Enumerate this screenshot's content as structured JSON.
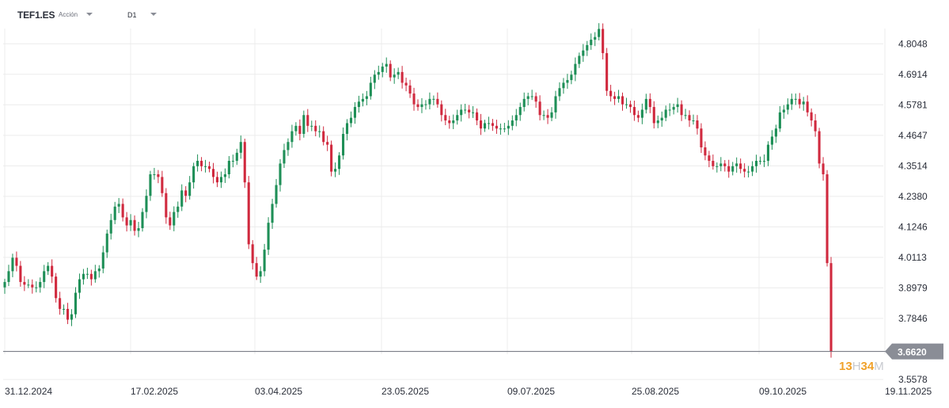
{
  "header": {
    "symbol": "TEF1.ES",
    "asset_type": "Acción",
    "timeframe": "D1"
  },
  "price_tag": {
    "value": "3.6620",
    "color": "#8a8d96"
  },
  "countdown": {
    "hours": "13",
    "h_unit": "H",
    "minutes": "34",
    "m_unit": "M",
    "color": "#f0a12a"
  },
  "colors": {
    "up": "#1e8f57",
    "down": "#d0293e",
    "grid": "#ececec"
  },
  "chart_data": {
    "type": "candlestick",
    "y_ticks": [
      "4.8048",
      "4.6914",
      "4.5781",
      "4.4647",
      "4.3514",
      "4.2380",
      "4.1246",
      "4.0113",
      "3.8979",
      "3.7846",
      "3.5578"
    ],
    "ylim": [
      3.5578,
      4.8615
    ],
    "x_ticks": [
      "31.12.2024",
      "17.02.2025",
      "03.04.2025",
      "23.05.2025",
      "09.07.2025",
      "25.08.2025",
      "09.10.2025",
      "19.11.2025"
    ],
    "last_price": 3.662,
    "closes": [
      3.92,
      3.96,
      4.01,
      3.98,
      3.92,
      3.91,
      3.91,
      3.9,
      3.9,
      3.92,
      3.96,
      3.98,
      3.94,
      3.86,
      3.82,
      3.82,
      3.78,
      3.8,
      3.88,
      3.93,
      3.95,
      3.95,
      3.93,
      3.96,
      3.97,
      4.03,
      4.1,
      4.15,
      4.2,
      4.21,
      4.16,
      4.13,
      4.15,
      4.11,
      4.12,
      4.18,
      4.24,
      4.32,
      4.32,
      4.31,
      4.25,
      4.16,
      4.13,
      4.18,
      4.2,
      4.26,
      4.24,
      4.29,
      4.35,
      4.37,
      4.35,
      4.35,
      4.34,
      4.31,
      4.29,
      4.31,
      4.32,
      4.37,
      4.37,
      4.4,
      4.44,
      4.29,
      4.06,
      3.99,
      3.94,
      3.96,
      4.04,
      4.14,
      4.21,
      4.28,
      4.36,
      4.41,
      4.44,
      4.48,
      4.5,
      4.47,
      4.54,
      4.5,
      4.5,
      4.48,
      4.48,
      4.44,
      4.43,
      4.33,
      4.34,
      4.39,
      4.47,
      4.51,
      4.53,
      4.57,
      4.59,
      4.6,
      4.61,
      4.66,
      4.69,
      4.7,
      4.72,
      4.73,
      4.68,
      4.69,
      4.7,
      4.66,
      4.65,
      4.62,
      4.58,
      4.57,
      4.58,
      4.58,
      4.6,
      4.6,
      4.58,
      4.54,
      4.52,
      4.51,
      4.52,
      4.54,
      4.56,
      4.56,
      4.55,
      4.55,
      4.52,
      4.49,
      4.51,
      4.51,
      4.5,
      4.49,
      4.49,
      4.49,
      4.5,
      4.52,
      4.54,
      4.57,
      4.6,
      4.61,
      4.61,
      4.59,
      4.54,
      4.54,
      4.53,
      4.55,
      4.61,
      4.64,
      4.66,
      4.67,
      4.69,
      4.73,
      4.76,
      4.78,
      4.8,
      4.82,
      4.83,
      4.86,
      4.77,
      4.63,
      4.61,
      4.6,
      4.61,
      4.58,
      4.58,
      4.57,
      4.54,
      4.53,
      4.56,
      4.6,
      4.57,
      4.51,
      4.52,
      4.53,
      4.56,
      4.56,
      4.57,
      4.58,
      4.54,
      4.54,
      4.52,
      4.52,
      4.49,
      4.42,
      4.39,
      4.37,
      4.35,
      4.35,
      4.36,
      4.35,
      4.33,
      4.35,
      4.36,
      4.34,
      4.33,
      4.33,
      4.35,
      4.37,
      4.37,
      4.37,
      4.43,
      4.46,
      4.49,
      4.55,
      4.56,
      4.58,
      4.6,
      4.6,
      4.58,
      4.59,
      4.55,
      4.52,
      4.48,
      4.36,
      4.32,
      3.99,
      3.662
    ]
  }
}
